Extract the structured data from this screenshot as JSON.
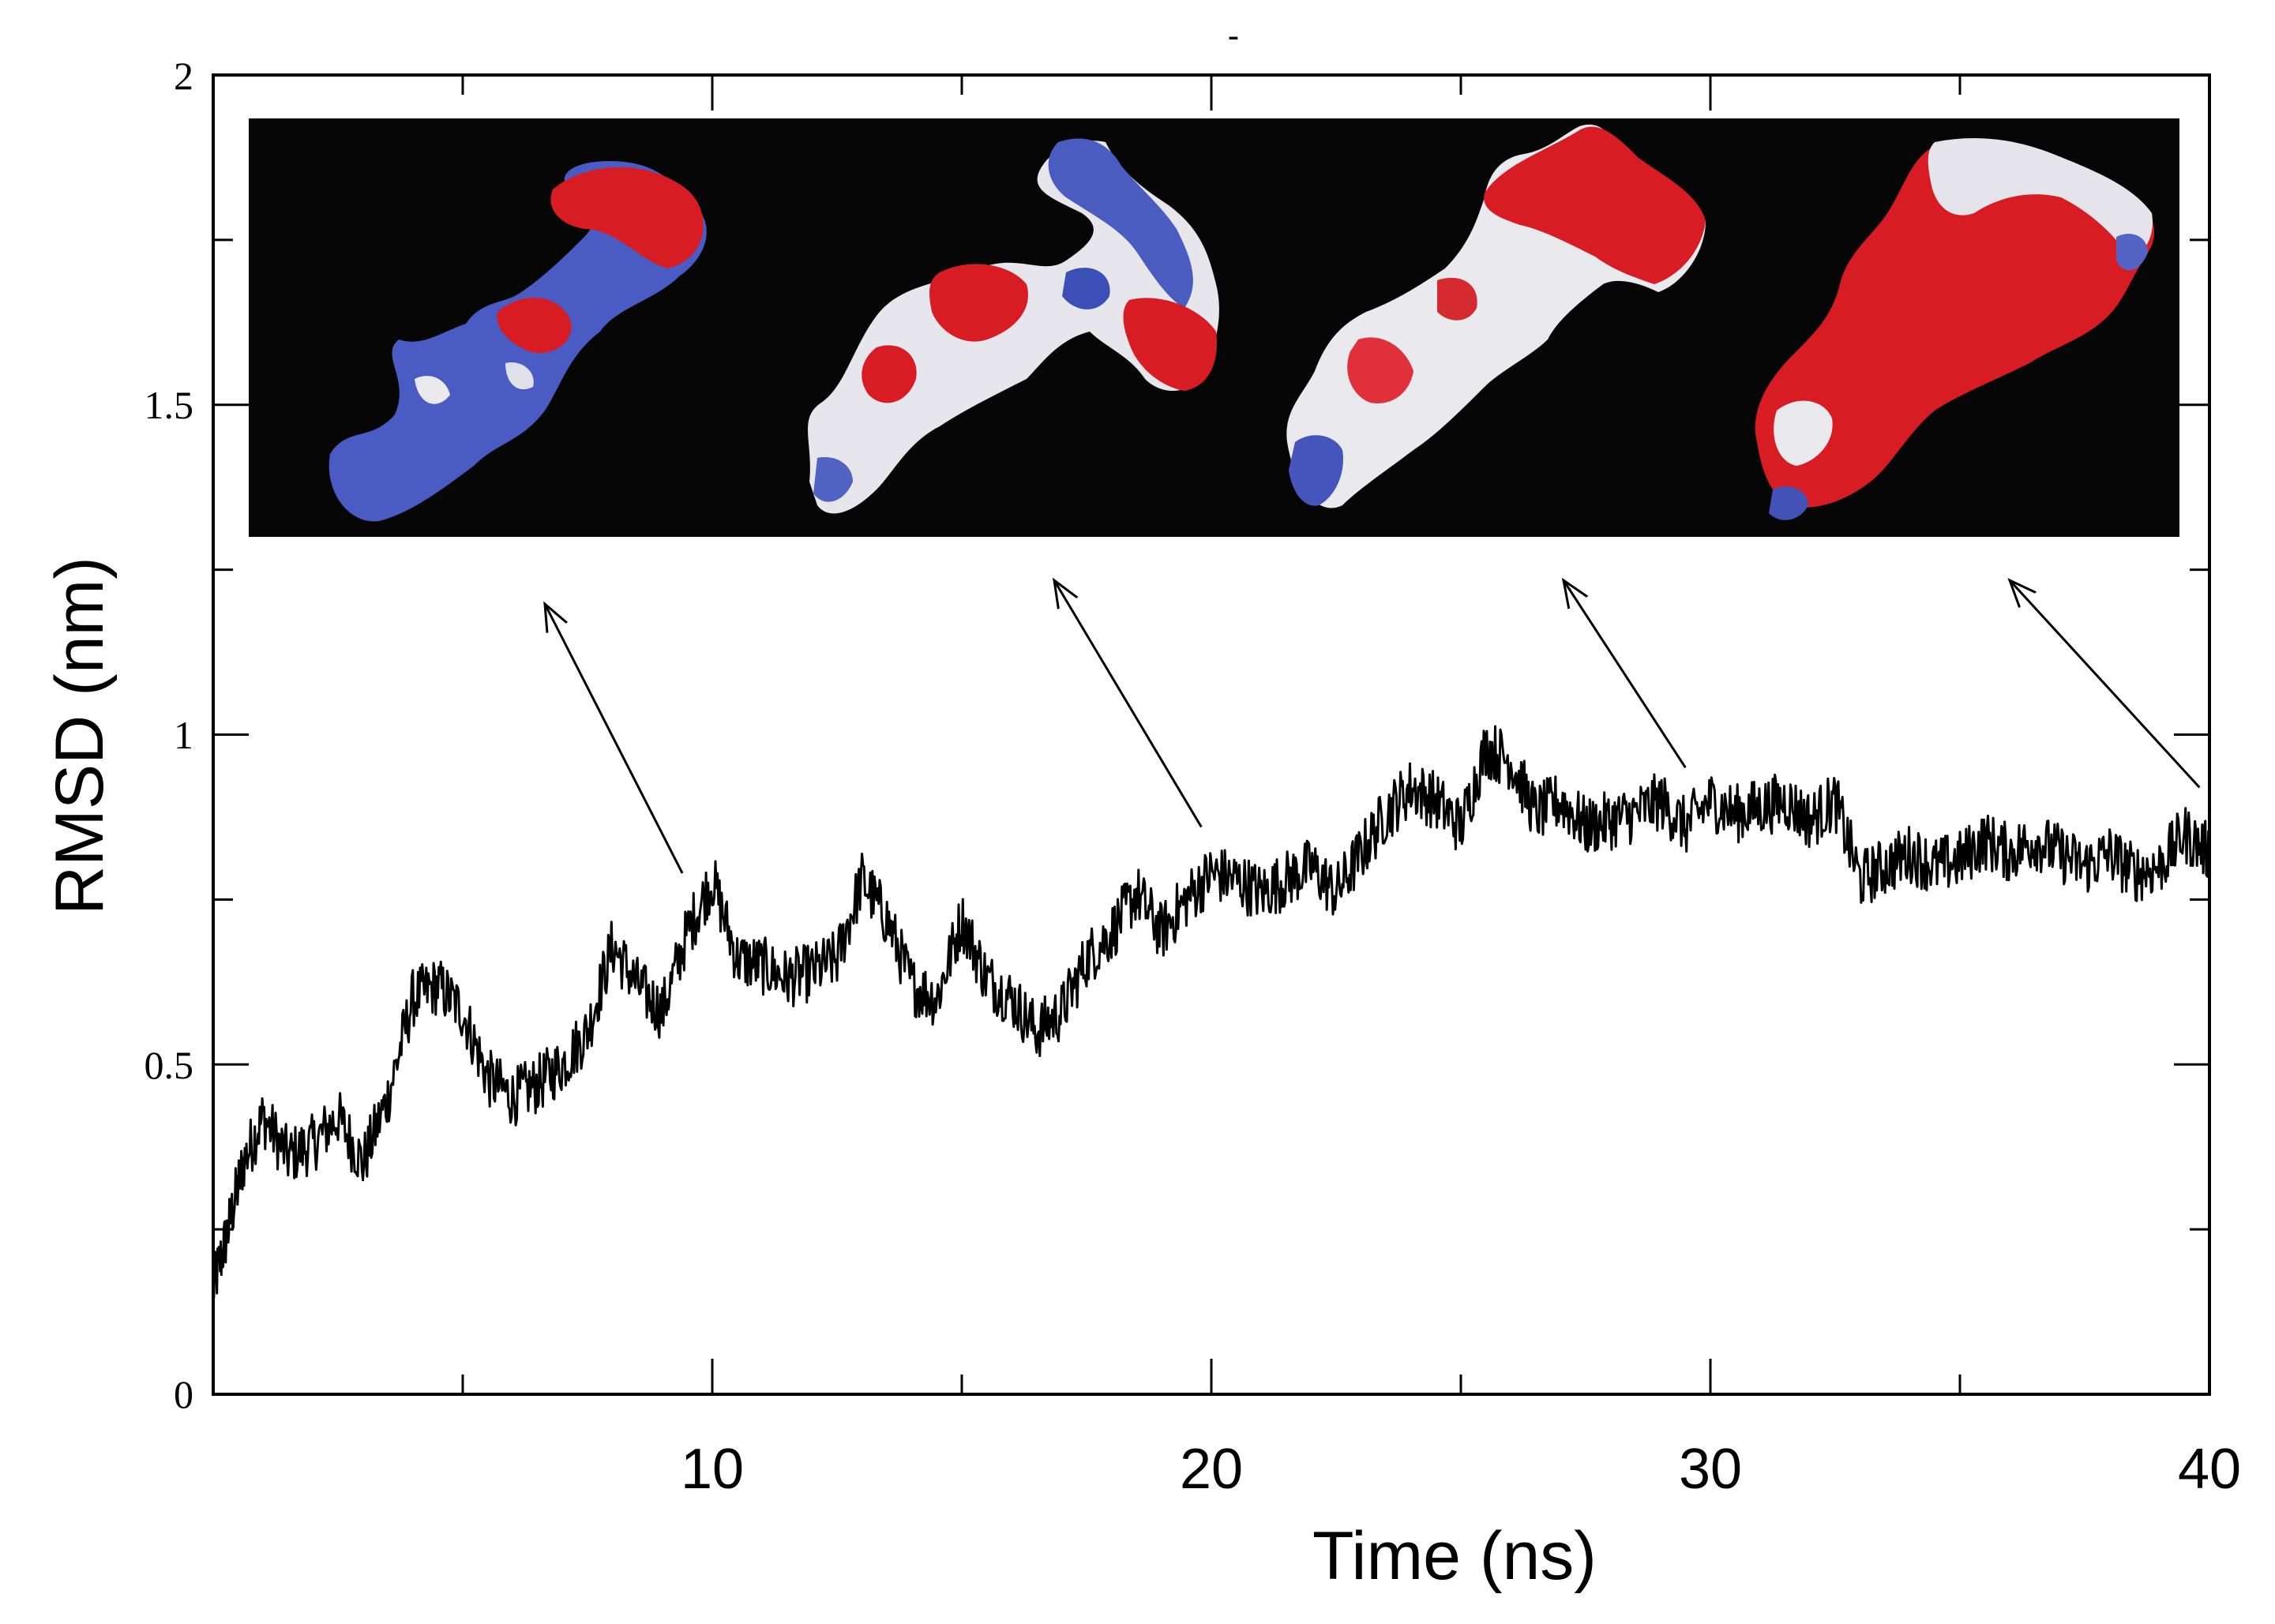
{
  "chart_data": {
    "type": "line",
    "title": "-",
    "xlabel": "Time (ns)",
    "ylabel": "RMSD (nm)",
    "xlim": [
      0,
      40
    ],
    "ylim": [
      0,
      2
    ],
    "x_ticks": [
      10,
      20,
      30,
      40
    ],
    "x_tick_labels": [
      "10",
      "20",
      "30",
      "40"
    ],
    "y_ticks": [
      0,
      0.5,
      1,
      1.5,
      2
    ],
    "y_tick_labels": [
      "0",
      "0.5",
      "1",
      "1.5",
      "2"
    ],
    "grid": false,
    "series": [
      {
        "x": [
          0,
          0.3,
          0.6,
          1.0,
          1.5,
          2.0,
          2.5,
          3.0,
          3.5,
          4.0,
          4.5,
          5.0,
          5.5,
          6.0,
          6.5,
          7.0,
          7.5,
          8.0,
          8.5,
          9.0,
          9.5,
          10.0,
          10.5,
          11.0,
          11.5,
          12.0,
          12.5,
          13.0,
          13.5,
          14.0,
          14.5,
          15.0,
          15.5,
          16.0,
          16.5,
          17.0,
          17.5,
          18.0,
          18.5,
          19.0,
          19.5,
          20.0,
          20.5,
          21.0,
          21.5,
          22.0,
          22.5,
          23.0,
          23.5,
          24.0,
          24.5,
          25.0,
          25.5,
          26.0,
          26.5,
          27.0,
          27.5,
          28.0,
          28.5,
          29.0,
          29.5,
          30.0,
          30.5,
          31.0,
          31.5,
          32.0,
          32.5,
          33.0,
          33.5,
          34.0,
          34.5,
          35.0,
          35.5,
          36.0,
          36.5,
          37.0,
          37.5,
          38.0,
          38.5,
          39.0,
          39.5,
          40.0
        ],
        "y": [
          0.16,
          0.25,
          0.35,
          0.42,
          0.36,
          0.38,
          0.42,
          0.35,
          0.45,
          0.6,
          0.62,
          0.58,
          0.48,
          0.45,
          0.47,
          0.5,
          0.55,
          0.68,
          0.62,
          0.58,
          0.7,
          0.78,
          0.66,
          0.65,
          0.63,
          0.64,
          0.66,
          0.78,
          0.72,
          0.62,
          0.6,
          0.72,
          0.63,
          0.6,
          0.55,
          0.58,
          0.66,
          0.7,
          0.76,
          0.7,
          0.75,
          0.79,
          0.78,
          0.76,
          0.78,
          0.8,
          0.76,
          0.82,
          0.88,
          0.92,
          0.9,
          0.86,
          0.98,
          0.96,
          0.88,
          0.9,
          0.86,
          0.87,
          0.88,
          0.9,
          0.86,
          0.9,
          0.88,
          0.89,
          0.9,
          0.87,
          0.9,
          0.78,
          0.8,
          0.82,
          0.8,
          0.81,
          0.84,
          0.82,
          0.84,
          0.82,
          0.8,
          0.82,
          0.79,
          0.8,
          0.85,
          0.82
        ]
      }
    ],
    "annotations": [
      {
        "type": "arrow",
        "from_x": 9.4,
        "from_y": 0.79
      },
      {
        "type": "arrow",
        "from_x": 19.8,
        "from_y": 0.86
      },
      {
        "type": "arrow",
        "from_x": 29.5,
        "from_y": 0.95
      },
      {
        "type": "arrow",
        "from_x": 39.8,
        "from_y": 0.92
      }
    ]
  },
  "inset": {
    "background": "#060606",
    "panels": [
      {
        "name": "structure-1",
        "tint": "blue"
      },
      {
        "name": "structure-2",
        "tint": "mixed"
      },
      {
        "name": "structure-3",
        "tint": "red-white"
      },
      {
        "name": "structure-4",
        "tint": "red"
      }
    ]
  },
  "colors": {
    "line": "#000000",
    "red": "#d81c24",
    "blue": "#3a4fb0",
    "white": "#e9e9ee"
  }
}
